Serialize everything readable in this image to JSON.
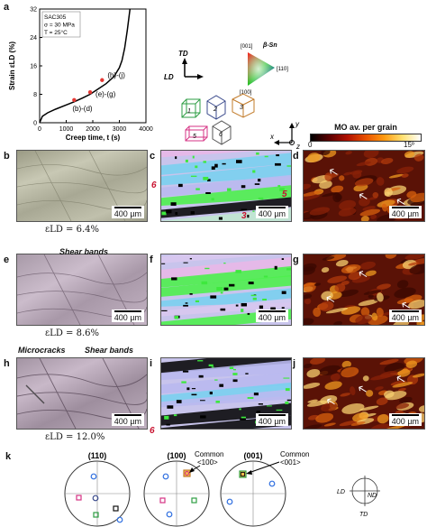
{
  "panels": {
    "a": "a",
    "b": "b",
    "c": "c",
    "d": "d",
    "e": "e",
    "f": "f",
    "g": "g",
    "h": "h",
    "i": "i",
    "j": "j",
    "k": "k"
  },
  "chart_data": {
    "type": "line",
    "xlabel": "Creep time, t (s)",
    "ylabel": "Strain εLD (%)",
    "xlim": [
      0,
      4000
    ],
    "ylim": [
      0,
      32
    ],
    "xticks": [
      "0",
      "1000",
      "2000",
      "3000",
      "4000"
    ],
    "yticks": [
      "0",
      "8",
      "16",
      "24",
      "32"
    ],
    "legend_text": [
      "SAC305",
      "σ = 30 MPa",
      "T = 25°C"
    ],
    "series": [
      {
        "x": [
          0,
          100,
          300,
          600,
          1000,
          1300,
          1600,
          1900,
          2200,
          2500,
          2800,
          3000,
          3100,
          3200,
          3300,
          3350,
          3400
        ],
        "y": [
          0,
          1.8,
          2.8,
          3.8,
          5.0,
          5.9,
          6.9,
          8.0,
          9.5,
          11.0,
          13.0,
          15.5,
          17.5,
          21.0,
          26.0,
          29.0,
          32.0
        ]
      }
    ],
    "markers": [
      {
        "x": 1300,
        "y": 6.4,
        "label": "(b)-(d)"
      },
      {
        "x": 1900,
        "y": 8.6,
        "label": "(e)-(g)"
      },
      {
        "x": 2350,
        "y": 12.0,
        "label": "(h)-(j)"
      }
    ],
    "marker_color": "#e53935"
  },
  "orientation": {
    "td": "TD",
    "ld": "LD",
    "phase": "β-Sn",
    "ipf_labels": [
      "[001]",
      "[110]",
      "[100]"
    ],
    "cells": [
      "1",
      "2",
      "3",
      "5",
      "6"
    ],
    "cell_colors": [
      "#2e9e44",
      "#3a4a8c",
      "#c27b2a",
      "#d63384",
      "#555555"
    ]
  },
  "axes_icon": {
    "x": "x",
    "y": "y",
    "z": "z"
  },
  "colorbar": {
    "title": "MO av. per grain",
    "min": "0",
    "max": "15º",
    "gradient": [
      "#000000",
      "#5a0000",
      "#b01000",
      "#e85000",
      "#ff9a10",
      "#ffe070",
      "#ffffff"
    ]
  },
  "scale_label": "400 µm",
  "rows": [
    {
      "strain": "εLD = 6.4%",
      "annot": "",
      "annot2": ""
    },
    {
      "strain": "εLD = 8.6%",
      "annot": "Shear bands",
      "annot2": ""
    },
    {
      "strain": "εLD = 12.0%",
      "annot": "Shear bands",
      "annot2": "Microcracks"
    }
  ],
  "red_labels": {
    "c_left": "6",
    "c_right": "5",
    "c_bottom": "3",
    "i_left": "6"
  },
  "pole_figures": {
    "titles": [
      "(110)",
      "(100)",
      "(001)"
    ],
    "callout_100": [
      "Common",
      "<100>"
    ],
    "callout_001": [
      "Common",
      "<001>"
    ],
    "axes": {
      "ld": "LD",
      "nd": "ND",
      "td": "TD"
    }
  }
}
